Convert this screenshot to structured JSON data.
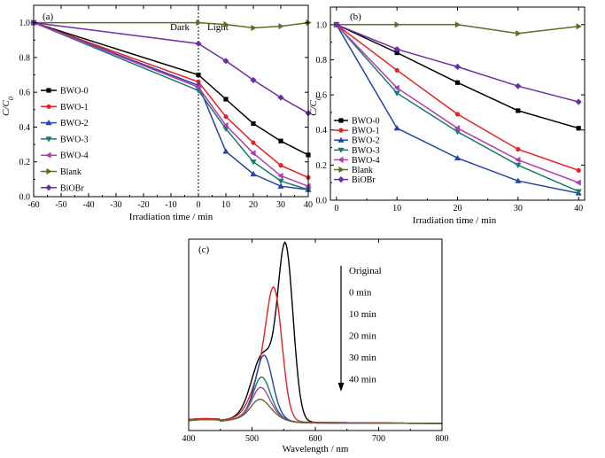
{
  "colors": {
    "BWO-0": "#000000",
    "BWO-1": "#e32222",
    "BWO-2": "#2443a8",
    "BWO-3": "#1a7a6a",
    "BWO-4": "#b03bb0",
    "Blank": "#5b6e25",
    "BiOBr": "#6a2fa6"
  },
  "chart_data": [
    {
      "panel": "(a)",
      "type": "line",
      "xlabel": "Irradiation time / min",
      "ylabel": "C/C0",
      "xlim": [
        -60,
        40
      ],
      "ylim": [
        0,
        1.1
      ],
      "xticks": [
        "-60",
        "-50",
        "-40",
        "-30",
        "-20",
        "-10",
        "0",
        "10",
        "20",
        "30",
        "40"
      ],
      "yticks": [
        "0.0",
        "0.2",
        "0.4",
        "0.6",
        "0.8",
        "1.0"
      ],
      "annotations": [
        "Dark",
        "Light"
      ],
      "legend_position": "left",
      "series": [
        {
          "name": "BWO-0",
          "marker": "square",
          "x": [
            -60,
            0,
            10,
            20,
            30,
            40
          ],
          "y": [
            1.0,
            0.7,
            0.56,
            0.42,
            0.32,
            0.24
          ]
        },
        {
          "name": "BWO-1",
          "marker": "circle",
          "x": [
            -60,
            0,
            10,
            20,
            30,
            40
          ],
          "y": [
            1.0,
            0.66,
            0.46,
            0.31,
            0.18,
            0.11
          ]
        },
        {
          "name": "BWO-2",
          "marker": "triangle-up",
          "x": [
            -60,
            0,
            10,
            20,
            30,
            40
          ],
          "y": [
            1.0,
            0.64,
            0.26,
            0.13,
            0.06,
            0.04
          ]
        },
        {
          "name": "BWO-3",
          "marker": "triangle-down",
          "x": [
            -60,
            0,
            10,
            20,
            30,
            40
          ],
          "y": [
            1.0,
            0.61,
            0.39,
            0.2,
            0.09,
            0.04
          ]
        },
        {
          "name": "BWO-4",
          "marker": "triangle-left",
          "x": [
            -60,
            0,
            10,
            20,
            30,
            40
          ],
          "y": [
            1.0,
            0.63,
            0.41,
            0.25,
            0.12,
            0.06
          ]
        },
        {
          "name": "Blank",
          "marker": "triangle-right",
          "x": [
            -60,
            0,
            10,
            20,
            30,
            40
          ],
          "y": [
            1.0,
            1.0,
            0.99,
            0.97,
            0.98,
            1.0
          ]
        },
        {
          "name": "BiOBr",
          "marker": "diamond",
          "x": [
            -60,
            0,
            10,
            20,
            30,
            40
          ],
          "y": [
            1.0,
            0.88,
            0.78,
            0.67,
            0.57,
            0.48
          ]
        }
      ]
    },
    {
      "panel": "(b)",
      "type": "line",
      "xlabel": "Irradiation time / min",
      "ylabel": "C/C0",
      "xlim": [
        -1,
        41
      ],
      "ylim": [
        0,
        1.1
      ],
      "xticks": [
        "0",
        "10",
        "20",
        "30",
        "40"
      ],
      "yticks": [
        "0.0",
        "0.2",
        "0.4",
        "0.6",
        "0.8",
        "1.0"
      ],
      "legend_position": "left",
      "series": [
        {
          "name": "BWO-0",
          "marker": "square",
          "x": [
            0,
            10,
            20,
            30,
            40
          ],
          "y": [
            1.0,
            0.84,
            0.67,
            0.51,
            0.41
          ]
        },
        {
          "name": "BWO-1",
          "marker": "circle",
          "x": [
            0,
            10,
            20,
            30,
            40
          ],
          "y": [
            1.0,
            0.74,
            0.49,
            0.29,
            0.17
          ]
        },
        {
          "name": "BWO-2",
          "marker": "triangle-up",
          "x": [
            0,
            10,
            20,
            30,
            40
          ],
          "y": [
            1.0,
            0.41,
            0.24,
            0.11,
            0.04
          ]
        },
        {
          "name": "BWO-3",
          "marker": "triangle-down",
          "x": [
            0,
            10,
            20,
            30,
            40
          ],
          "y": [
            1.0,
            0.61,
            0.39,
            0.2,
            0.05
          ]
        },
        {
          "name": "BWO-4",
          "marker": "triangle-left",
          "x": [
            0,
            10,
            20,
            30,
            40
          ],
          "y": [
            1.0,
            0.64,
            0.41,
            0.23,
            0.1
          ]
        },
        {
          "name": "Blank",
          "marker": "triangle-right",
          "x": [
            0,
            10,
            20,
            30,
            40
          ],
          "y": [
            1.0,
            1.0,
            1.0,
            0.95,
            0.99
          ]
        },
        {
          "name": "BiOBr",
          "marker": "diamond",
          "x": [
            0,
            10,
            20,
            30,
            40
          ],
          "y": [
            1.0,
            0.86,
            0.76,
            0.65,
            0.56
          ]
        }
      ]
    },
    {
      "panel": "(c)",
      "type": "line",
      "xlabel": "Wavelength / nm",
      "xlim": [
        400,
        800
      ],
      "xticks": [
        "400",
        "500",
        "600",
        "700",
        "800"
      ],
      "annotations": [
        "Original",
        "0 min",
        "10 min",
        "20 min",
        "30 min",
        "40 min"
      ],
      "series": [
        {
          "name": "Original",
          "color": "#000000",
          "peak": 1.0,
          "shoulder": 0.38
        },
        {
          "name": "0 min",
          "color": "#e32222",
          "peak": 0.62,
          "shoulder": 0.26
        },
        {
          "name": "10 min",
          "color": "#2443a8",
          "peak": 0.25,
          "shoulder": 0.13
        },
        {
          "name": "20 min",
          "color": "#1a7a6a",
          "peak": 0.15,
          "shoulder": 0.1
        },
        {
          "name": "30 min",
          "color": "#b03bb0",
          "peak": 0.1,
          "shoulder": 0.09
        },
        {
          "name": "40 min",
          "color": "#5b6e25",
          "peak": 0.05,
          "shoulder": 0.07
        }
      ]
    }
  ]
}
